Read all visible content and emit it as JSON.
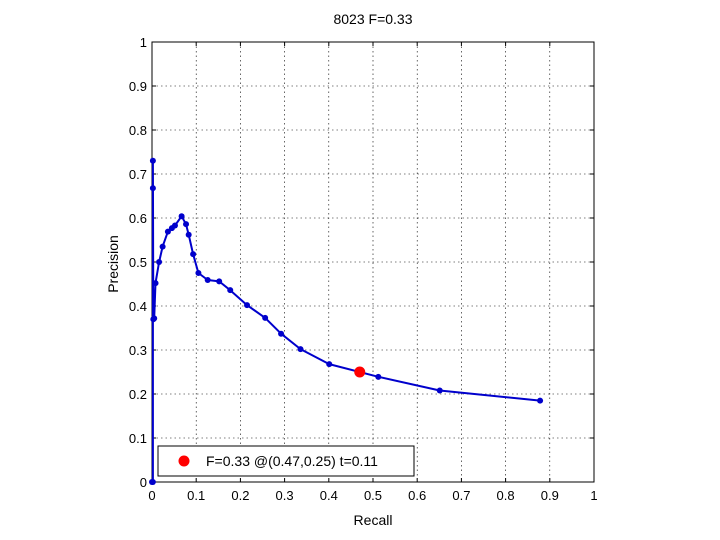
{
  "chart_data": {
    "type": "line",
    "title": "8023 F=0.33",
    "xlabel": "Recall",
    "ylabel": "Precision",
    "xlim": [
      0,
      1
    ],
    "ylim": [
      0,
      1
    ],
    "xticks": [
      0,
      0.1,
      0.2,
      0.3,
      0.4,
      0.5,
      0.6,
      0.7,
      0.8,
      0.9,
      1
    ],
    "yticks": [
      0,
      0.1,
      0.2,
      0.3,
      0.4,
      0.5,
      0.6,
      0.7,
      0.8,
      0.9,
      1
    ],
    "xtick_labels": [
      "0",
      "0.1",
      "0.2",
      "0.3",
      "0.4",
      "0.5",
      "0.6",
      "0.7",
      "0.8",
      "0.9",
      "1"
    ],
    "ytick_labels": [
      "0",
      "0.1",
      "0.2",
      "0.3",
      "0.4",
      "0.5",
      "0.6",
      "0.7",
      "0.8",
      "0.9",
      "1"
    ],
    "grid": true,
    "legend_position": "bottom-left",
    "series": [
      {
        "color": "#0000cc",
        "x": [
          0.878,
          0.651,
          0.512,
          0.401,
          0.336,
          0.292,
          0.256,
          0.215,
          0.177,
          0.152,
          0.126,
          0.105,
          0.093,
          0.083,
          0.077,
          0.067,
          0.052,
          0.045,
          0.036,
          0.024,
          0.016,
          0.008,
          0.005,
          0.003,
          0.002,
          0.002,
          0.002,
          0.0
        ],
        "y": [
          0.185,
          0.208,
          0.239,
          0.268,
          0.302,
          0.337,
          0.373,
          0.402,
          0.436,
          0.456,
          0.459,
          0.475,
          0.518,
          0.562,
          0.586,
          0.604,
          0.583,
          0.577,
          0.569,
          0.535,
          0.5,
          0.452,
          0.372,
          0.37,
          0.73,
          0.668,
          0.0,
          0.0
        ]
      }
    ],
    "marker": {
      "x": 0.47,
      "y": 0.25,
      "color": "#ff0000",
      "label": "F=0.33 @(0.47,0.25) t=0.11"
    }
  }
}
